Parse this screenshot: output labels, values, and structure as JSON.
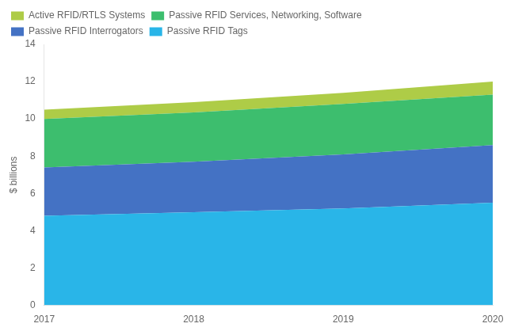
{
  "chart_data": {
    "type": "area",
    "stacked": true,
    "x": [
      2017,
      2018,
      2019,
      2020
    ],
    "series": [
      {
        "name": "Passive RFID Tags",
        "color": "#29B5E8",
        "values": [
          4.8,
          5.0,
          5.2,
          5.5
        ]
      },
      {
        "name": "Passive RFID Interrogators",
        "color": "#4472C4",
        "values": [
          2.6,
          2.7,
          2.9,
          3.1
        ]
      },
      {
        "name": "Passive RFID Services, Networking, Software",
        "color": "#3DBE6E",
        "values": [
          2.6,
          2.65,
          2.7,
          2.7
        ]
      },
      {
        "name": "Active RFID/RTLS Systems",
        "color": "#AECC47",
        "values": [
          0.5,
          0.55,
          0.6,
          0.7
        ]
      }
    ],
    "xlim": [
      2017,
      2020
    ],
    "xticks": [
      2017,
      2018,
      2019,
      2020
    ],
    "ylim": [
      0,
      14
    ],
    "yticks": [
      0,
      2,
      4,
      6,
      8,
      10,
      12,
      14
    ],
    "ylabel": "$ billions",
    "grid": false,
    "legend": "upper left"
  }
}
